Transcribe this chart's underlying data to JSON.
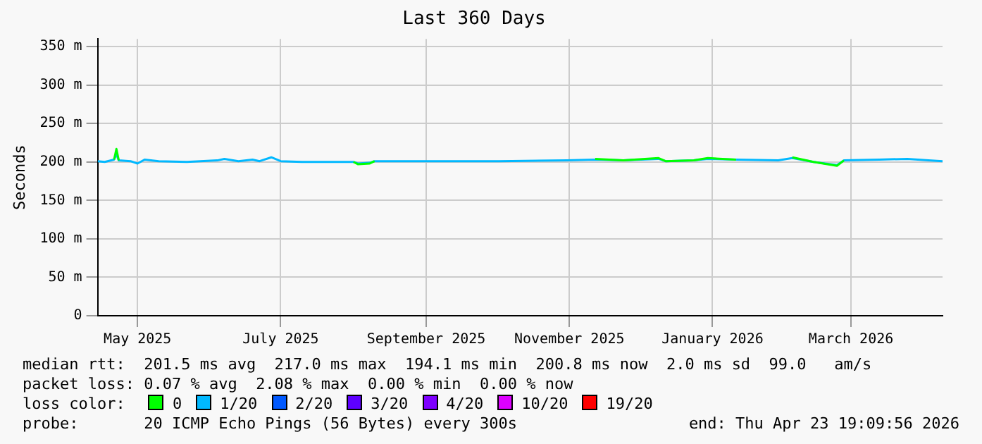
{
  "chart_data": {
    "type": "line",
    "title": "Last 360 Days",
    "ylabel": "Seconds",
    "x": [
      "2025-04-28",
      "2025-05-01",
      "2025-05-05",
      "2025-05-06",
      "2025-05-07",
      "2025-05-12",
      "2025-05-15",
      "2025-05-18",
      "2025-05-24",
      "2025-06-05",
      "2025-06-18",
      "2025-06-21",
      "2025-06-27",
      "2025-07-03",
      "2025-07-06",
      "2025-07-11",
      "2025-07-15",
      "2025-07-24",
      "2025-08-15",
      "2025-08-17",
      "2025-08-22",
      "2025-08-24",
      "2025-09-16",
      "2025-10-16",
      "2025-11-14",
      "2025-11-26",
      "2025-12-08",
      "2025-12-23",
      "2025-12-26",
      "2026-01-07",
      "2026-01-13",
      "2026-01-25",
      "2026-02-12",
      "2026-02-18",
      "2026-02-27",
      "2026-03-09",
      "2026-03-12",
      "2026-03-27",
      "2026-04-08",
      "2026-04-17",
      "2026-04-23"
    ],
    "series": [
      {
        "name": "0",
        "color": "#00ff00",
        "values": [
          null,
          null,
          203,
          217,
          202,
          null,
          null,
          null,
          null,
          null,
          null,
          null,
          null,
          null,
          null,
          null,
          null,
          null,
          200,
          197,
          198,
          201,
          null,
          null,
          null,
          204,
          202,
          205,
          201,
          202,
          205,
          203,
          null,
          206,
          200,
          195,
          202,
          null,
          null,
          null,
          null
        ]
      },
      {
        "name": "1/20",
        "color": "#00b8ff",
        "values": [
          201,
          200,
          203,
          210,
          202,
          201,
          198,
          203,
          201,
          200,
          202,
          204,
          201,
          203,
          201,
          206,
          201,
          200,
          200,
          198,
          199,
          201,
          201,
          201,
          202,
          203,
          202,
          204,
          201,
          202,
          204,
          203,
          202,
          205,
          200,
          196,
          202,
          203,
          204,
          202,
          201
        ]
      },
      {
        "name": "2/20",
        "color": "#0059ff",
        "values": [
          null,
          null,
          null,
          null,
          null,
          null,
          null,
          null,
          null,
          null,
          null,
          null,
          null,
          null,
          null,
          null,
          null,
          null,
          null,
          null,
          null,
          null,
          null,
          null,
          null,
          null,
          null,
          null,
          null,
          null,
          null,
          null,
          null,
          null,
          null,
          null,
          null,
          null,
          null,
          null,
          null
        ]
      },
      {
        "name": "3/20",
        "color": "#5e00ff",
        "values": [
          null,
          null,
          null,
          null,
          null,
          null,
          null,
          null,
          null,
          null,
          null,
          null,
          null,
          null,
          null,
          null,
          null,
          null,
          null,
          null,
          null,
          null,
          null,
          null,
          null,
          null,
          null,
          null,
          null,
          null,
          null,
          null,
          null,
          null,
          null,
          null,
          null,
          null,
          null,
          null,
          null
        ]
      },
      {
        "name": "4/20",
        "color": "#7e00ff",
        "values": [
          null,
          null,
          null,
          null,
          null,
          null,
          null,
          null,
          null,
          null,
          null,
          null,
          null,
          null,
          null,
          null,
          null,
          null,
          null,
          null,
          null,
          null,
          null,
          null,
          null,
          null,
          null,
          null,
          null,
          null,
          null,
          null,
          null,
          null,
          null,
          null,
          null,
          null,
          null,
          null,
          null
        ]
      },
      {
        "name": "10/20",
        "color": "#dd00ff",
        "values": [
          null,
          null,
          null,
          null,
          null,
          null,
          null,
          null,
          null,
          null,
          null,
          null,
          null,
          null,
          null,
          null,
          null,
          null,
          null,
          null,
          null,
          null,
          null,
          null,
          null,
          null,
          null,
          null,
          null,
          null,
          null,
          null,
          null,
          null,
          null,
          null,
          null,
          null,
          null,
          null,
          null
        ]
      },
      {
        "name": "19/20",
        "color": "#ff0000",
        "values": [
          null,
          null,
          null,
          null,
          null,
          null,
          null,
          null,
          null,
          null,
          null,
          null,
          null,
          null,
          null,
          null,
          null,
          null,
          null,
          null,
          null,
          null,
          null,
          null,
          null,
          null,
          null,
          null,
          null,
          null,
          null,
          null,
          null,
          null,
          null,
          null,
          null,
          null,
          null,
          null,
          null
        ]
      }
    ],
    "xlim": [
      "2025-04-28",
      "2026-04-23"
    ],
    "xticks": [
      {
        "value": "2025-05-15",
        "label": "May 2025"
      },
      {
        "value": "2025-07-15",
        "label": "July 2025"
      },
      {
        "value": "2025-09-15",
        "label": "September 2025"
      },
      {
        "value": "2025-11-15",
        "label": "November 2025"
      },
      {
        "value": "2026-01-15",
        "label": "January 2026"
      },
      {
        "value": "2026-03-15",
        "label": "March 2026"
      }
    ],
    "ylim": [
      0,
      360
    ],
    "yticks": [
      0,
      {
        "value": 50,
        "label": "50 m"
      },
      {
        "value": 100,
        "label": "100 m"
      },
      {
        "value": 150,
        "label": "150 m"
      },
      {
        "value": 200,
        "label": "200 m"
      },
      {
        "value": 250,
        "label": "250 m"
      },
      {
        "value": 300,
        "label": "300 m"
      },
      {
        "value": 350,
        "label": "350 m"
      }
    ],
    "grid": true,
    "legend": "bottom",
    "legend_title": "loss color:",
    "marker": "none",
    "line_style": "solid",
    "annotations": [
      "median rtt:  201.5 ms avg  217.0 ms max  194.1 ms min  200.8 ms now  2.0 ms sd  99.0   am/s",
      "packet loss: 0.07 % avg  2.08 % max  0.00 % min  0.00 % now",
      "probe:       20 ICMP Echo Pings (56 Bytes) every 300s",
      "end: Thu Apr 23 19:09:56 2026"
    ]
  }
}
